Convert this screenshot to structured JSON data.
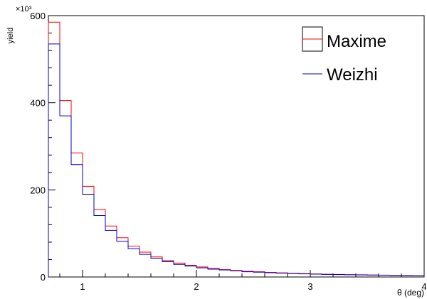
{
  "chart_data": {
    "type": "line",
    "title": "",
    "xlabel": "θ (deg)",
    "ylabel": "yield",
    "y_multiplier": "×10³",
    "xlim": [
      0.7,
      4.0
    ],
    "ylim": [
      0,
      600
    ],
    "x_ticks": [
      {
        "value": 1,
        "label": "1"
      },
      {
        "value": 2,
        "label": "2"
      },
      {
        "value": 3,
        "label": "3"
      },
      {
        "value": 4,
        "label": "4"
      }
    ],
    "y_ticks": [
      {
        "value": 0,
        "label": "0"
      },
      {
        "value": 200,
        "label": "200"
      },
      {
        "value": 400,
        "label": "400"
      },
      {
        "value": 600,
        "label": "600"
      }
    ],
    "bin_edges": [
      0.7,
      0.8,
      0.9,
      1.0,
      1.1,
      1.2,
      1.3,
      1.4,
      1.5,
      1.6,
      1.7,
      1.8,
      1.9,
      2.0,
      2.1,
      2.2,
      2.3,
      2.4,
      2.5,
      2.6,
      2.7,
      2.8,
      2.9,
      3.0,
      3.1,
      3.2,
      3.3,
      3.4,
      3.5,
      3.6,
      3.7,
      3.8,
      3.9,
      4.0
    ],
    "series": [
      {
        "name": "Maxime",
        "color": "#ff0000",
        "values": [
          585,
          405,
          285,
          208,
          155,
          117,
          90,
          71,
          57,
          46,
          38,
          32,
          27,
          23,
          20,
          17,
          15,
          13,
          12,
          10.5,
          9.5,
          8.5,
          7.7,
          7,
          6.4,
          5.9,
          5.4,
          5,
          4.6,
          4.3,
          4,
          3.7,
          3.4
        ]
      },
      {
        "name": "Weizhi",
        "color": "#0000cc",
        "values": [
          535,
          370,
          258,
          190,
          141,
          107,
          82,
          65,
          52,
          43,
          35,
          29,
          25,
          21,
          18,
          16,
          14,
          12,
          11,
          9.8,
          8.8,
          7.9,
          7.2,
          6.5,
          6,
          5.5,
          5,
          4.7,
          4.3,
          4,
          3.7,
          3.4,
          3.2
        ]
      }
    ],
    "legend_position": "top-right"
  }
}
